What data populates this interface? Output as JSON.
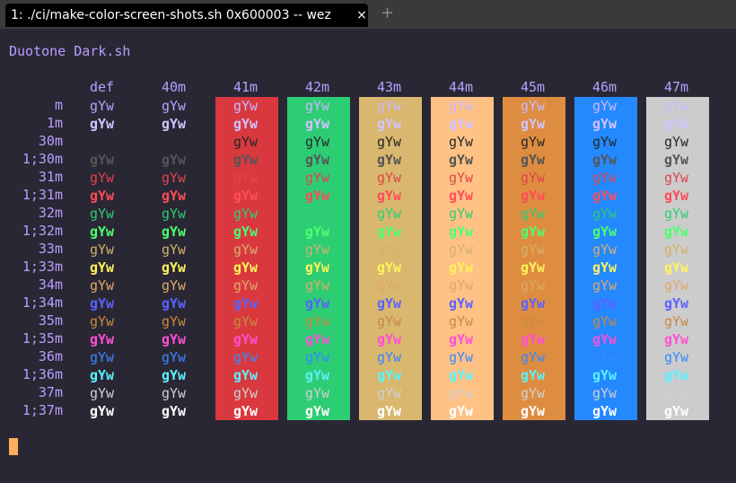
{
  "tab": {
    "title": "1: ./ci/make-color-screen-shots.sh 0x600003 -- wez",
    "close": "×",
    "new": "+"
  },
  "terminal": {
    "script_name": "Duotone Dark.sh",
    "headers": [
      "def",
      "40m",
      "41m",
      "42m",
      "43m",
      "44m",
      "45m",
      "46m",
      "47m"
    ],
    "sample": "gYw",
    "rows": [
      {
        "label": "m"
      },
      {
        "label": "1m"
      },
      {
        "label": "30m"
      },
      {
        "label": "1;30m"
      },
      {
        "label": "31m"
      },
      {
        "label": "1;31m"
      },
      {
        "label": "32m"
      },
      {
        "label": "1;32m"
      },
      {
        "label": "33m"
      },
      {
        "label": "1;33m"
      },
      {
        "label": "34m"
      },
      {
        "label": "1;34m"
      },
      {
        "label": "35m"
      },
      {
        "label": "1;35m"
      },
      {
        "label": "36m"
      },
      {
        "label": "1;36m"
      },
      {
        "label": "37m"
      },
      {
        "label": "1;37m"
      }
    ]
  },
  "colors": {
    "bg": [
      "#2a2734",
      "#2a2734",
      "#d9393e",
      "#2dcd73",
      "#d9b76e",
      "#ffc284",
      "#de8d40",
      "#2488ff",
      "#cccccc"
    ],
    "fg": [
      "#b7a1ff",
      "#1f1d27",
      "#d9393e",
      "#2dcd73",
      "#d9b76e",
      "#ffc284",
      "#de8d40",
      "#2488ff",
      "#b7a1ff"
    ],
    "fg_bright": [
      "#d0c4ff",
      "#353147",
      "#d9393e",
      "#2dcd73",
      "#d9b76e",
      "#ffc284",
      "#de8d40",
      "#2488ff",
      "#eaeaeb"
    ]
  }
}
